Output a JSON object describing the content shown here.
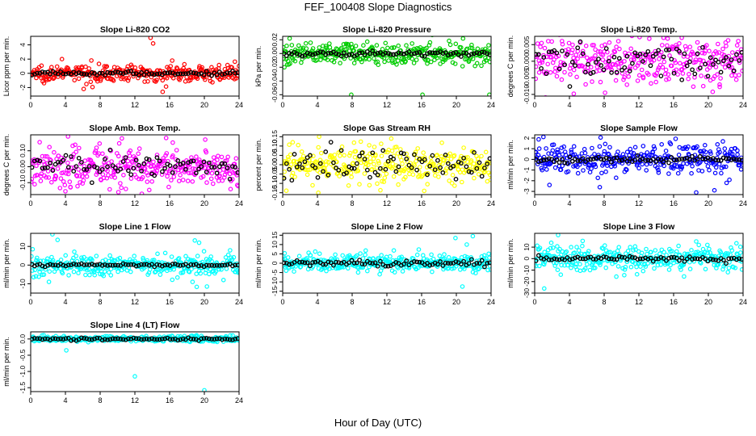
{
  "page": {
    "title": "FEF_100408  Slope Diagnostics",
    "xlabel": "Hour of Day (UTC)"
  },
  "chart_data": [
    {
      "type": "scatter",
      "title": "Slope Li-820 CO2",
      "ylabel": "Licor ppm per min.",
      "color": "#ff0000",
      "xlim": [
        0,
        24
      ],
      "ylim": [
        -3.2,
        5.2
      ],
      "yticks": [
        -2,
        0,
        2,
        4
      ],
      "ytick_labels": [
        "-2",
        "0",
        "2",
        "4"
      ],
      "xticks": [
        0,
        4,
        8,
        12,
        16,
        20,
        24
      ],
      "spread": 0.55,
      "black_spread": 0.15,
      "outliers": [
        [
          13.8,
          5.0
        ],
        [
          14.1,
          4.2
        ],
        [
          6.1,
          -2.2
        ],
        [
          3.6,
          2.0
        ],
        [
          15.2,
          -2.6
        ],
        [
          16.3,
          1.8
        ]
      ]
    },
    {
      "type": "scatter",
      "title": "Slope Li-820 Pressure",
      "ylabel": "kPa per min.",
      "color": "#00cc00",
      "xlim": [
        0,
        24
      ],
      "ylim": [
        -0.062,
        0.025
      ],
      "yticks": [
        -0.06,
        -0.04,
        -0.02,
        0.0,
        0.02
      ],
      "ytick_labels": [
        "-0.06",
        "-0.04",
        "-0.02",
        "0.00",
        "0.02"
      ],
      "xticks": [
        0,
        4,
        8,
        12,
        16,
        20,
        24
      ],
      "spread": 0.008,
      "black_spread": 0.002,
      "outliers": [
        [
          0.8,
          0.022
        ],
        [
          7.9,
          -0.06
        ],
        [
          16.1,
          -0.06
        ],
        [
          23.8,
          -0.06
        ],
        [
          0.2,
          -0.02
        ]
      ]
    },
    {
      "type": "scatter",
      "title": "Slope Li-820 Temp.",
      "ylabel": "degrees C per min.",
      "color": "#ff00ff",
      "xlim": [
        0,
        24
      ],
      "ylim": [
        -0.0105,
        0.0075
      ],
      "yticks": [
        -0.01,
        -0.005,
        0.0,
        0.005
      ],
      "ytick_labels": [
        "-0.010",
        "-0.005",
        "0.000",
        "0.005"
      ],
      "xticks": [
        0,
        4,
        8,
        12,
        16,
        20,
        24
      ],
      "spread": 0.0035,
      "black_spread": 0.0025,
      "outliers": [
        [
          4.5,
          -0.0098
        ],
        [
          8.1,
          -0.0095
        ],
        [
          13.2,
          0.0068
        ],
        [
          20.5,
          -0.0092
        ]
      ]
    },
    {
      "type": "scatter",
      "title": "Slope Amb. Box Temp.",
      "ylabel": "degrees C per min.",
      "color": "#ff00ff",
      "xlim": [
        0,
        24
      ],
      "ylim": [
        -0.175,
        0.2
      ],
      "yticks": [
        -0.1,
        0.0,
        0.1
      ],
      "ytick_labels": [
        "-0.10",
        "0.00",
        "0.10"
      ],
      "xticks": [
        0,
        4,
        8,
        12,
        16,
        20,
        24
      ],
      "spread": 0.06,
      "black_spread": 0.035,
      "outliers": [
        [
          4.3,
          0.19
        ],
        [
          10.1,
          -0.16
        ],
        [
          12.8,
          -0.17
        ],
        [
          15.6,
          0.18
        ],
        [
          20.1,
          0.17
        ]
      ]
    },
    {
      "type": "scatter",
      "title": "Slope Gas Stream RH",
      "ylabel": "percent per min.",
      "color": "#ffff00",
      "xlim": [
        0,
        24
      ],
      "ylim": [
        -0.16,
        0.16
      ],
      "yticks": [
        -0.15,
        -0.1,
        -0.05,
        0.0,
        0.05,
        0.1,
        0.15
      ],
      "ytick_labels": [
        "-0.15",
        "-0.10",
        "-0.05",
        "0.00",
        "0.05",
        "0.10",
        "0.15"
      ],
      "xticks": [
        0,
        4,
        8,
        12,
        16,
        20,
        24
      ],
      "spread": 0.05,
      "black_spread": 0.04,
      "outliers": [
        [
          4.2,
          0.15
        ],
        [
          4.1,
          -0.15
        ],
        [
          12.5,
          0.14
        ],
        [
          16.3,
          -0.14
        ]
      ]
    },
    {
      "type": "scatter",
      "title": "Slope Sample Flow",
      "ylabel": "ml/min per min.",
      "color": "#0000ff",
      "xlim": [
        0,
        24
      ],
      "ylim": [
        -3.3,
        2.3
      ],
      "yticks": [
        -3,
        -2,
        -1,
        0,
        1,
        2
      ],
      "ytick_labels": [
        "-3",
        "-2",
        "-1",
        "0",
        "1",
        "2"
      ],
      "xticks": [
        0,
        4,
        8,
        12,
        16,
        20,
        24
      ],
      "spread": 0.75,
      "black_spread": 0.15,
      "outliers": [
        [
          1.0,
          2.1
        ],
        [
          1.7,
          -2.4
        ],
        [
          7.5,
          -2.6
        ],
        [
          18.6,
          -3.1
        ],
        [
          20.7,
          -2.9
        ],
        [
          22.1,
          -2.2
        ]
      ]
    },
    {
      "type": "scatter",
      "title": "Slope Line 1 Flow",
      "ylabel": "ml/min per min.",
      "color": "#00ffff",
      "xlim": [
        0,
        24
      ],
      "ylim": [
        -15,
        17
      ],
      "yticks": [
        -10,
        0,
        10
      ],
      "ytick_labels": [
        "-10",
        "0",
        "10"
      ],
      "xticks": [
        0,
        4,
        8,
        12,
        16,
        20,
        24
      ],
      "spread": 3.0,
      "black_spread": 0.4,
      "outliers": [
        [
          2.5,
          16.5
        ],
        [
          3.1,
          13.5
        ],
        [
          18.9,
          13.2
        ],
        [
          19.4,
          12.0
        ],
        [
          2.1,
          -9.0
        ],
        [
          20.3,
          -11.5
        ],
        [
          0.6,
          -6.0
        ]
      ]
    },
    {
      "type": "scatter",
      "title": "Slope Line 2 Flow",
      "ylabel": "ml/min per min.",
      "color": "#00ffff",
      "xlim": [
        0,
        24
      ],
      "ylim": [
        -16,
        16
      ],
      "yticks": [
        -15,
        -10,
        -5,
        0,
        5,
        10,
        15
      ],
      "ytick_labels": [
        "-15",
        "-10",
        "-5",
        "0",
        "5",
        "10",
        "15"
      ],
      "xticks": [
        0,
        4,
        8,
        12,
        16,
        20,
        24
      ],
      "spread": 2.3,
      "black_spread": 0.9,
      "outliers": [
        [
          19.9,
          13.5
        ],
        [
          21.9,
          14.5
        ],
        [
          20.7,
          -12.5
        ],
        [
          21.2,
          10.0
        ],
        [
          0.4,
          -4.0
        ]
      ]
    },
    {
      "type": "scatter",
      "title": "Slope Line 3 Flow",
      "ylabel": "ml/min per min.",
      "color": "#00ffff",
      "xlim": [
        0,
        24
      ],
      "ylim": [
        -30,
        22
      ],
      "yticks": [
        -30,
        -20,
        -10,
        0,
        10
      ],
      "ytick_labels": [
        "-30",
        "-20",
        "-10",
        "0",
        "10"
      ],
      "xticks": [
        0,
        4,
        8,
        12,
        16,
        20,
        24
      ],
      "spread": 5.5,
      "black_spread": 1.0,
      "outliers": [
        [
          2.7,
          20.5
        ],
        [
          1.1,
          -26.0
        ],
        [
          3.0,
          -14.0
        ],
        [
          18.6,
          15.0
        ],
        [
          17.2,
          -15.5
        ],
        [
          4.2,
          10.0
        ]
      ]
    },
    {
      "type": "scatter",
      "title": "Slope Line 4 (LT) Flow",
      "ylabel": "ml/min per min.",
      "color": "#00ffff",
      "xlim": [
        0,
        24
      ],
      "ylim": [
        -1.62,
        0.22
      ],
      "yticks": [
        -1.5,
        -1.0,
        -0.5,
        0.0
      ],
      "ytick_labels": [
        "-1.5",
        "-1.0",
        "-0.5",
        "0.0"
      ],
      "xticks": [
        0,
        4,
        8,
        12,
        16,
        20,
        24
      ],
      "spread": 0.04,
      "black_spread": 0.02,
      "outliers": [
        [
          12.0,
          -1.15
        ],
        [
          20.0,
          -1.58
        ],
        [
          4.1,
          -0.35
        ],
        [
          1.5,
          0.12
        ],
        [
          19.0,
          0.1
        ]
      ]
    }
  ]
}
